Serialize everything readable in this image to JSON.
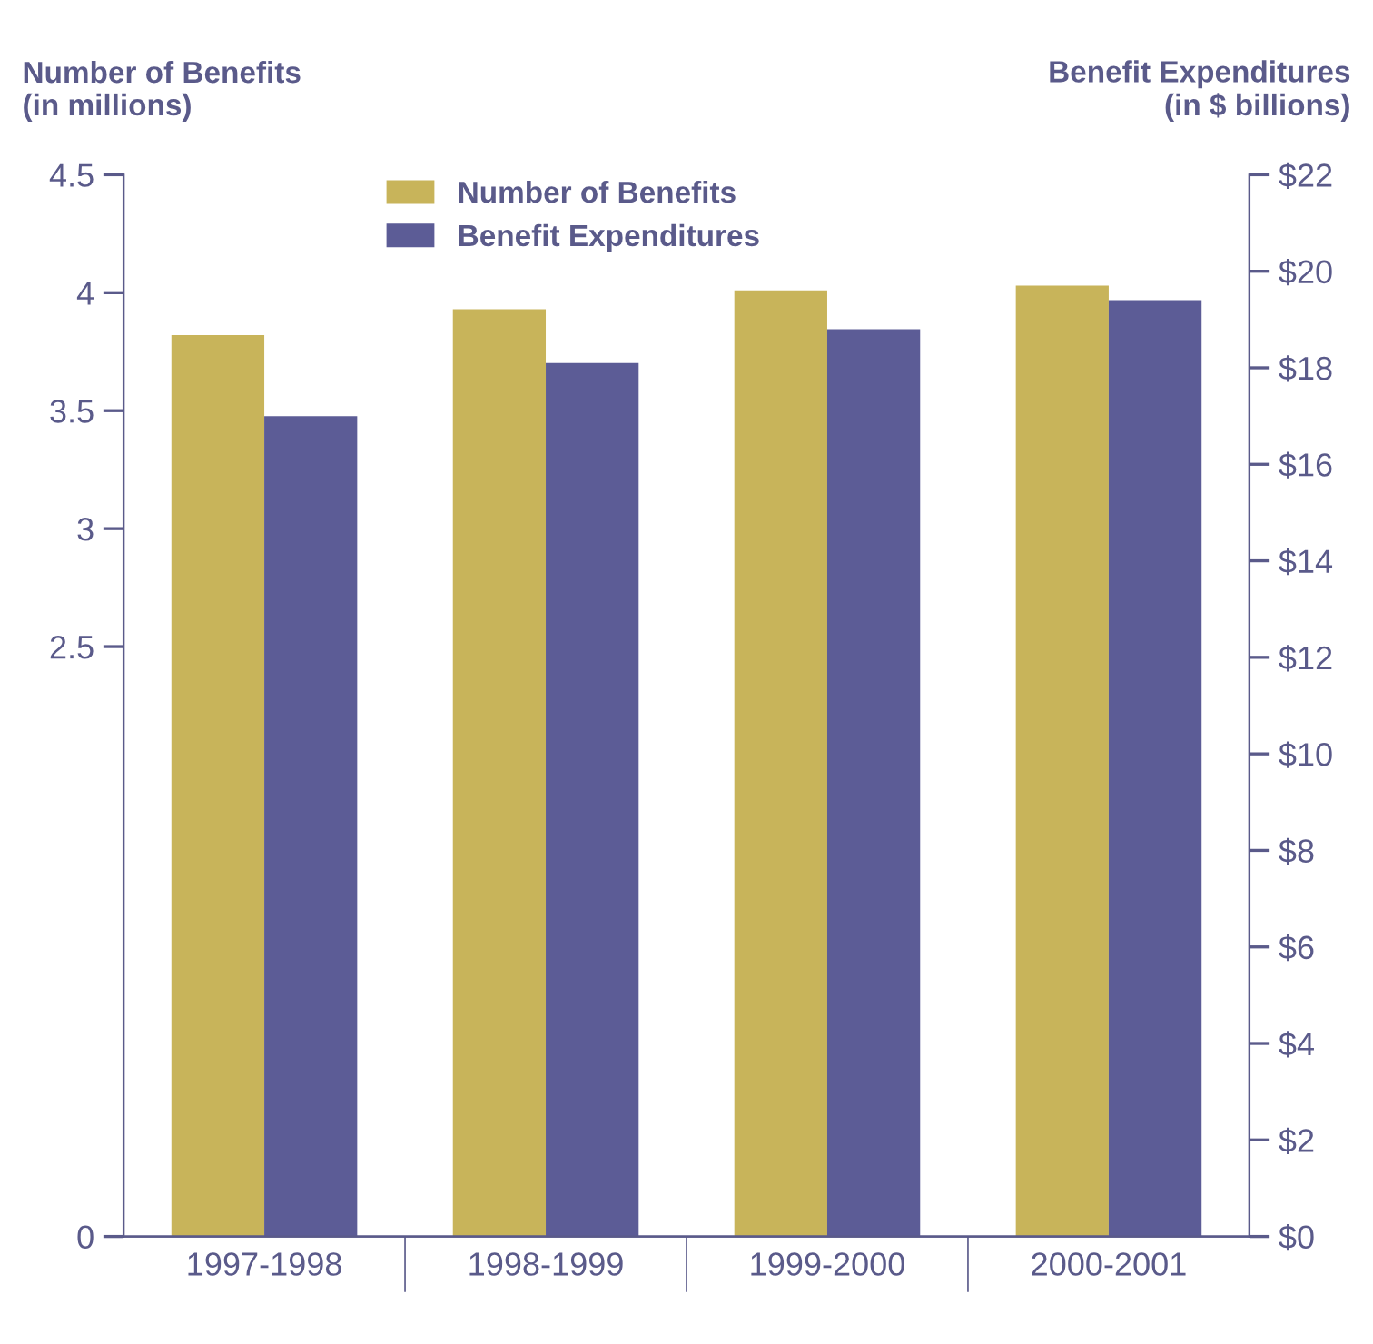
{
  "chart_data": {
    "type": "bar",
    "categories": [
      "1997-1998",
      "1998-1999",
      "1999-2000",
      "2000-2001"
    ],
    "series": [
      {
        "name": "Number of Benefits",
        "color": "#c8b45a",
        "values": [
          3.82,
          3.93,
          4.01,
          4.03
        ]
      },
      {
        "name": "Benefit Expenditures",
        "color": "#5c5c96",
        "axis": "y2",
        "values": [
          17.0,
          18.1,
          18.8,
          19.4
        ]
      }
    ],
    "ylabel": "Number of Benefits\n(in millions)",
    "y2label": "Benefit Expenditures\n(in $ billions)",
    "ylim": [
      0,
      4.5
    ],
    "yticks": [
      0,
      2.5,
      3,
      3.5,
      4,
      4.5
    ],
    "y2lim": [
      0,
      22
    ],
    "y2ticks": [
      {
        "value": 0,
        "label": "$0"
      },
      {
        "value": 2,
        "label": "$2"
      },
      {
        "value": 4,
        "label": "$4"
      },
      {
        "value": 6,
        "label": "$6"
      },
      {
        "value": 8,
        "label": "$8"
      },
      {
        "value": 10,
        "label": "$10"
      },
      {
        "value": 12,
        "label": "$12"
      },
      {
        "value": 14,
        "label": "$14"
      },
      {
        "value": 16,
        "label": "$16"
      },
      {
        "value": 18,
        "label": "$18"
      },
      {
        "value": 20,
        "label": "$20"
      },
      {
        "value": 22,
        "label": "$22"
      }
    ],
    "legend": "top",
    "grid": false
  }
}
